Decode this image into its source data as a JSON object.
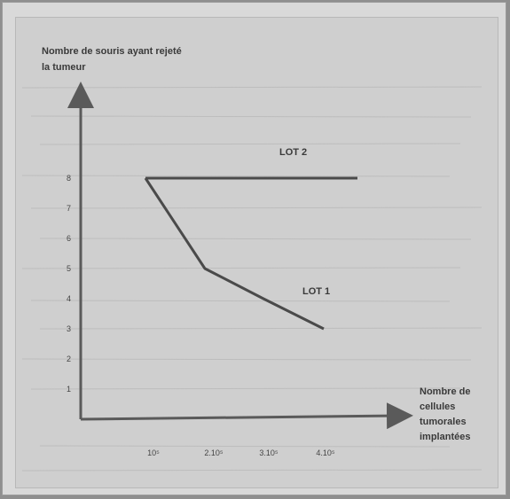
{
  "chart_data": {
    "type": "line",
    "title": "",
    "ylabel": [
      "Nombre de souris ayant rejeté",
      "la tumeur"
    ],
    "xlabel": [
      "Nombre de",
      "cellules",
      "tumorales",
      "implantées"
    ],
    "categories": [
      "10⁵",
      "2.10⁵",
      "3.10⁵",
      "4.10⁵"
    ],
    "y_ticks": [
      "1",
      "2",
      "3",
      "4",
      "5",
      "6",
      "7",
      "8"
    ],
    "ylim": [
      0,
      8
    ],
    "series": [
      {
        "name": "LOT 2",
        "values": [
          8,
          8,
          8,
          8
        ]
      },
      {
        "name": "LOT 1",
        "values": [
          8,
          5,
          4,
          3
        ]
      }
    ],
    "grid": false,
    "colors": {
      "line": "#4a4a4a",
      "axis": "#5a5a5a"
    }
  }
}
